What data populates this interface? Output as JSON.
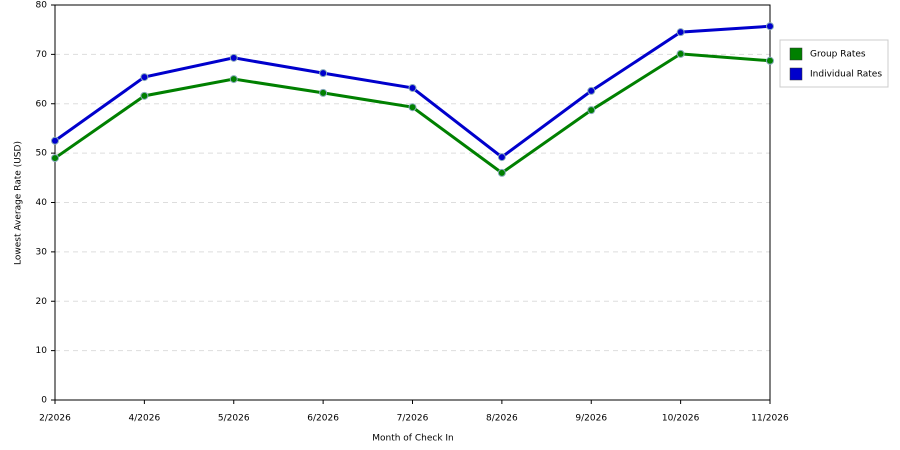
{
  "chart_data": {
    "type": "line",
    "x_label": "Month of Check In",
    "y_label": "Lowest Average Rate (USD)",
    "categories": [
      "2/2026",
      "4/2026",
      "5/2026",
      "6/2026",
      "7/2026",
      "8/2026",
      "9/2026",
      "10/2026",
      "11/2026"
    ],
    "series": [
      {
        "name": "Group Rates",
        "color": "#008000",
        "values": [
          49.0,
          61.6,
          65.0,
          62.2,
          59.3,
          46.0,
          58.7,
          70.1,
          68.7
        ]
      },
      {
        "name": "Individual Rates",
        "color": "#0000cc",
        "values": [
          52.5,
          65.4,
          69.3,
          66.2,
          63.2,
          49.2,
          62.6,
          74.5,
          75.7
        ]
      }
    ],
    "ylim": [
      0,
      80
    ],
    "yticks": [
      0,
      10,
      20,
      30,
      40,
      50,
      60,
      70,
      80
    ],
    "grid": true,
    "legend": "right"
  }
}
